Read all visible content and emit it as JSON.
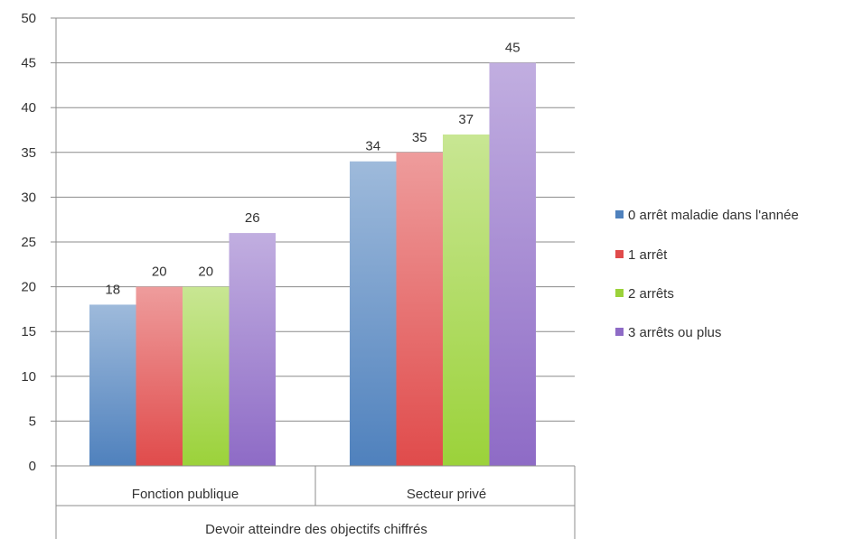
{
  "chart_data": {
    "type": "bar",
    "group_label": "Devoir atteindre des objectifs chiffrés",
    "categories": [
      "Fonction publique",
      "Secteur privé"
    ],
    "series": [
      {
        "name": "0 arrêt maladie dans l'année",
        "values": [
          18,
          34
        ],
        "color": "#4f81bd"
      },
      {
        "name": "1 arrêt",
        "values": [
          20,
          35
        ],
        "color": "#e04b4b"
      },
      {
        "name": "2 arrêts",
        "values": [
          20,
          37
        ],
        "color": "#9bd23a"
      },
      {
        "name": "3 arrêts ou plus",
        "values": [
          26,
          45
        ],
        "color": "#8e6bc6"
      }
    ],
    "data_labels": [
      [
        "18",
        "34"
      ],
      [
        "20",
        "35"
      ],
      [
        "20",
        "37"
      ],
      [
        "26",
        "45"
      ]
    ],
    "ylim": [
      0,
      50
    ],
    "yticks": [
      0,
      5,
      10,
      15,
      20,
      25,
      30,
      35,
      40,
      45,
      50
    ],
    "grid": true,
    "legend_position": "right"
  }
}
